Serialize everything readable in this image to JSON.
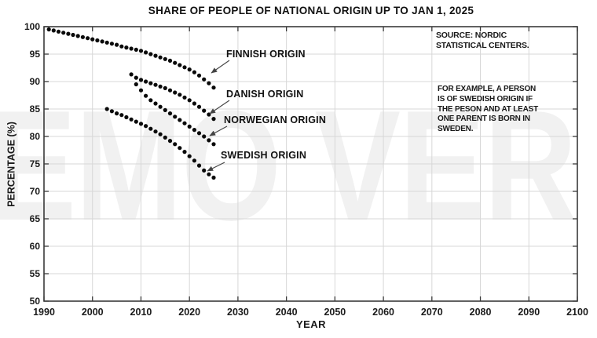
{
  "title": "SHARE OF PEOPLE OF NATIONAL ORIGIN UP TO JAN 1, 2025",
  "watermark": "EMO VER",
  "annotations": {
    "source_note": "SOURCE: NORDIC\nSTATISTICAL CENTERS.",
    "example_note": "FOR EXAMPLE, A PERSON\nIS OF SWEDISH ORIGIN IF\nTHE PESON AND AT LEAST\nONE PARENT IS BORN IN\nSWEDEN."
  },
  "chart_data": {
    "type": "scatter",
    "title": "SHARE OF PEOPLE OF NATIONAL ORIGIN UP TO JAN 1, 2025",
    "xlabel": "YEAR",
    "ylabel": "PERCENTAGE (%)",
    "xlim": [
      1990,
      2100
    ],
    "ylim": [
      50,
      100
    ],
    "x_ticks": [
      1990,
      2000,
      2010,
      2020,
      2030,
      2040,
      2050,
      2060,
      2070,
      2080,
      2090,
      2100
    ],
    "y_ticks": [
      50,
      55,
      60,
      65,
      70,
      75,
      80,
      85,
      90,
      95,
      100
    ],
    "grid": true,
    "legend_position": "inline-arrow-labels",
    "marker": "filled-dot",
    "series": [
      {
        "name": "FINNISH ORIGIN",
        "start_year": 1991,
        "values": [
          99.5,
          99.3,
          99.1,
          98.9,
          98.7,
          98.5,
          98.3,
          98.1,
          97.9,
          97.7,
          97.5,
          97.3,
          97.1,
          96.9,
          96.7,
          96.4,
          96.2,
          96.0,
          95.8,
          95.6,
          95.3,
          95.0,
          94.7,
          94.4,
          94.1,
          93.8,
          93.4,
          93.0,
          92.6,
          92.2,
          91.7,
          91.1,
          90.4,
          89.7,
          88.9
        ]
      },
      {
        "name": "DANISH ORIGIN",
        "start_year": 2008,
        "values": [
          91.3,
          90.7,
          90.3,
          90.0,
          89.7,
          89.4,
          89.1,
          88.8,
          88.4,
          88.0,
          87.6,
          87.1,
          86.6,
          86.0,
          85.4,
          84.7,
          84.0,
          83.2
        ]
      },
      {
        "name": "NORWEGIAN ORIGIN",
        "start_year": 2009,
        "values": [
          89.5,
          88.4,
          87.4,
          86.6,
          86.0,
          85.4,
          84.8,
          84.2,
          83.6,
          83.0,
          82.4,
          81.8,
          81.2,
          80.6,
          80.0,
          79.3,
          78.6
        ]
      },
      {
        "name": "SWEDISH ORIGIN",
        "start_year": 2003,
        "values": [
          85.0,
          84.6,
          84.2,
          83.9,
          83.5,
          83.1,
          82.7,
          82.3,
          81.9,
          81.4,
          80.9,
          80.4,
          79.8,
          79.2,
          78.6,
          77.9,
          77.2,
          76.4,
          75.6,
          74.7,
          73.8,
          73.1,
          72.5
        ]
      }
    ]
  },
  "colors": {
    "dots": "#0a0a0a",
    "grid": "#d7d7d7",
    "frame": "#3a3a3a",
    "arrow": "#444444",
    "text": "#1a1a1a"
  }
}
